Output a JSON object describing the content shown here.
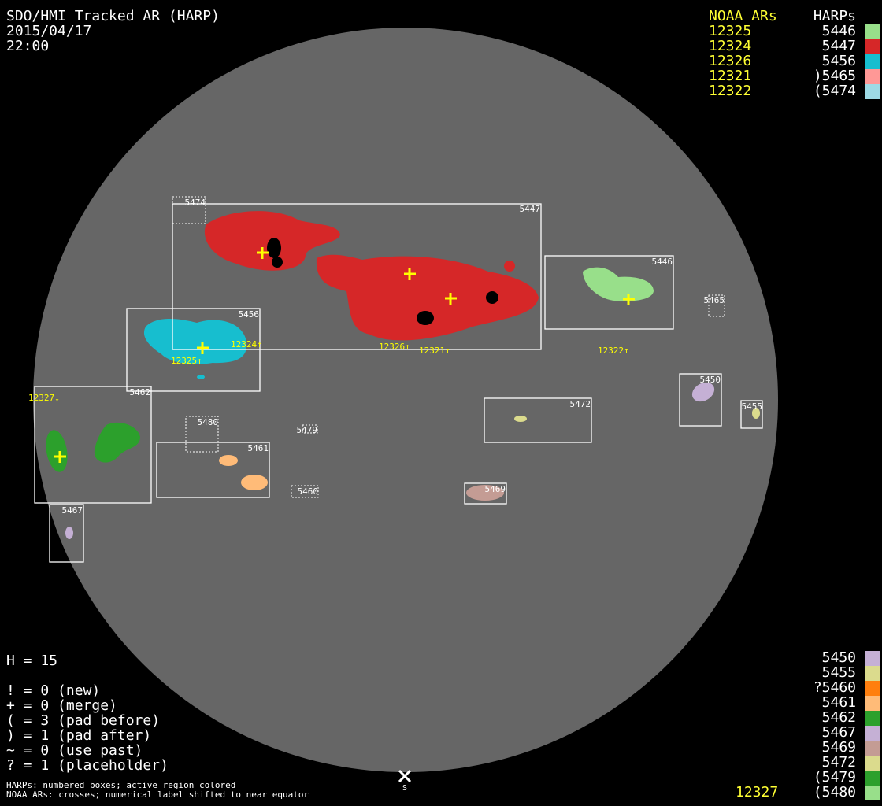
{
  "header": {
    "title": "SDO/HMI Tracked AR (HARP)",
    "date": "2015/04/17",
    "time": "22:00"
  },
  "legend_top": {
    "noaa_header": "NOAA ARs",
    "harp_header": "HARPs",
    "rows": [
      {
        "noaa": "12325",
        "harp": "5446",
        "color": "#98df8a"
      },
      {
        "noaa": "12324",
        "harp": "5447",
        "color": "#d62728"
      },
      {
        "noaa": "12326",
        "harp": "5456",
        "color": "#17becf"
      },
      {
        "noaa": "12321",
        "harp": ")5465",
        "color": "#ff9896"
      },
      {
        "noaa": "12322",
        "harp": "(5474",
        "color": "#9edae5"
      }
    ]
  },
  "legend_bottom": {
    "rows": [
      {
        "harp": "5450",
        "color": "#c5b0d5"
      },
      {
        "harp": "5455",
        "color": "#dbdb8d"
      },
      {
        "harp": "?5460",
        "color": "#ff7f0e"
      },
      {
        "harp": "5461",
        "color": "#ffbb78"
      },
      {
        "harp": "5462",
        "color": "#2ca02c"
      },
      {
        "harp": "5467",
        "color": "#c5b0d5"
      },
      {
        "harp": "5469",
        "color": "#c49c94"
      },
      {
        "harp": "5472",
        "color": "#dbdb8d"
      },
      {
        "harp": "(5479",
        "color": "#2ca02c"
      },
      {
        "harp": "(5480",
        "color": "#98df8a"
      }
    ],
    "noaa_extra": "12327"
  },
  "stats": {
    "h": "H = 15",
    "lines": [
      "! = 0 (new)",
      "+ = 0 (merge)",
      "( = 3 (pad before)",
      ") = 1 (pad after)",
      "~ = 0 (use past)",
      "? = 1 (placeholder)"
    ]
  },
  "footer": {
    "line1": "HARPs: numbered boxes; active region colored",
    "line2": "NOAA ARs: crosses; numerical label shifted to near equator"
  },
  "disk": {
    "color": "#666666",
    "south_marker": "S"
  },
  "harps": {
    "h5474": "5474",
    "h5447": "5447",
    "h5456": "5456",
    "h5462": "5462",
    "h5467": "5467",
    "h5480": "5480",
    "h5461": "5461",
    "h5479": "5479",
    "h5460": "5460",
    "h5469": "5469",
    "h5472": "5472",
    "h5446": "5446",
    "h5465": "5465",
    "h5450": "5450",
    "h5455": "5455"
  },
  "noaa_labels": {
    "a12324": "12324↑",
    "a12325": "12325↑",
    "a12326": "12326↑",
    "a12321": "12321↑",
    "a12322": "12322↑",
    "a12327": "12327↓"
  }
}
